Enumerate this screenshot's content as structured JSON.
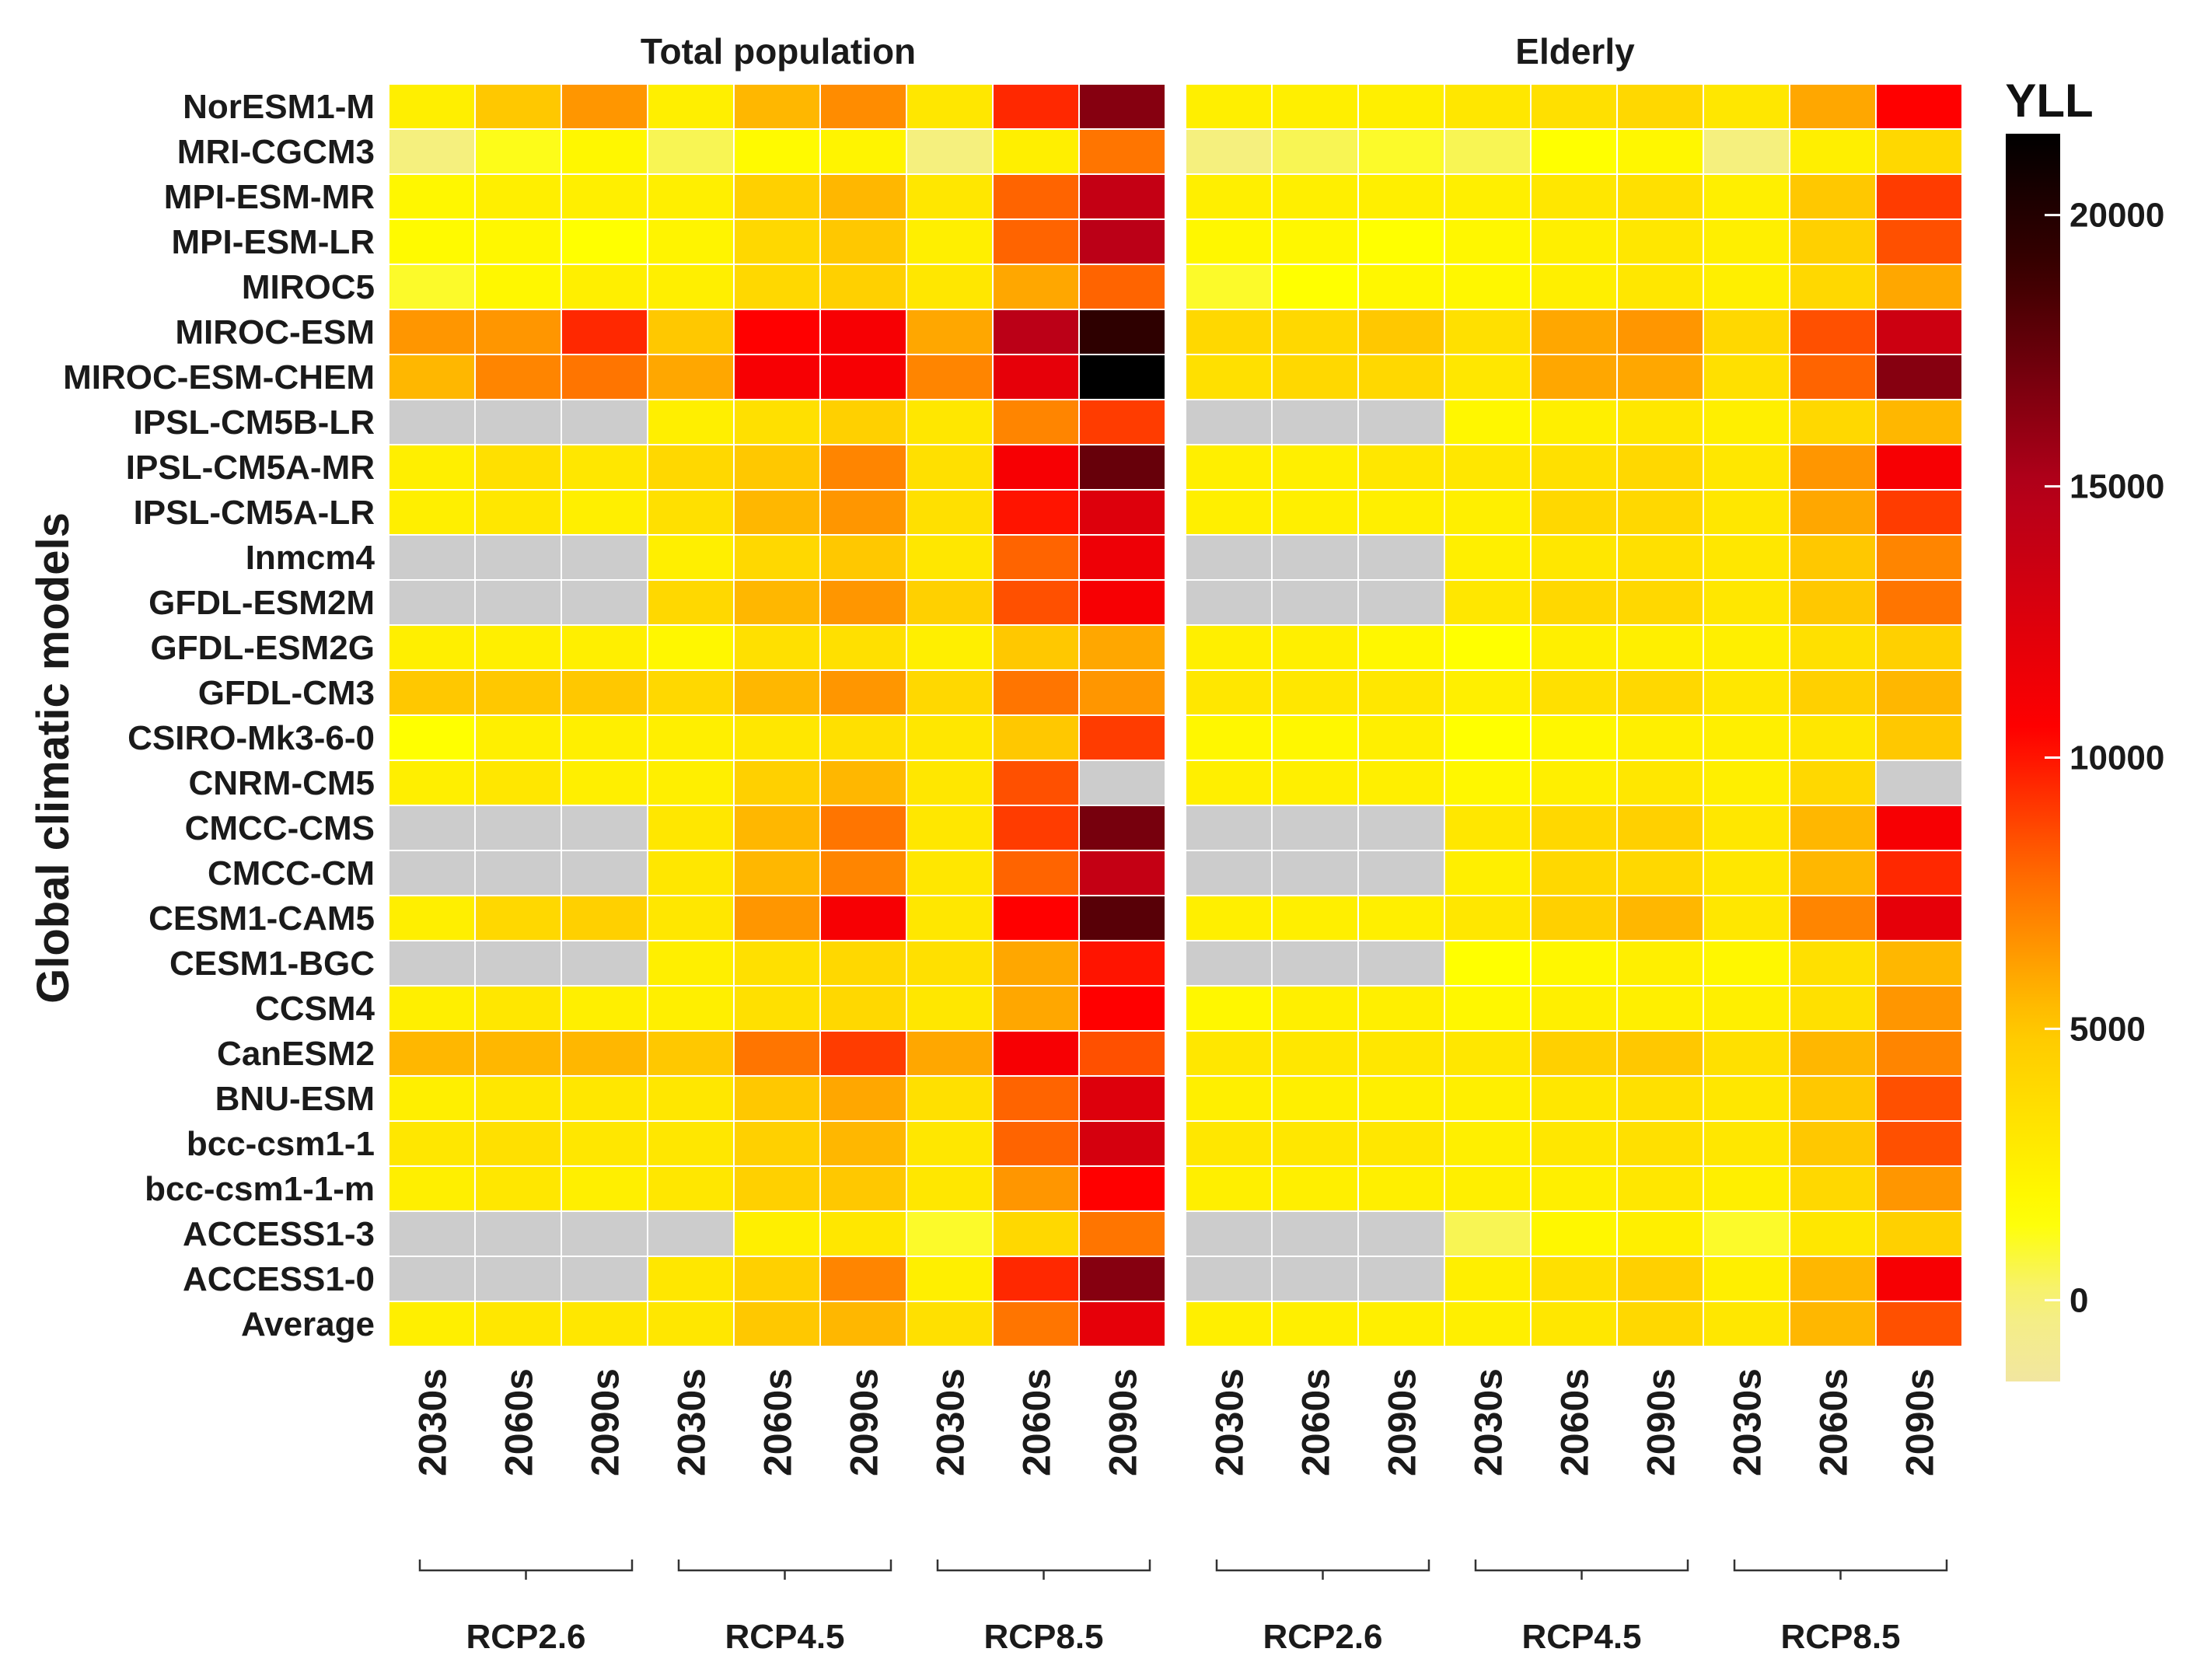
{
  "chart_data": {
    "type": "heatmap",
    "ylabel": "Global climatic models",
    "legend": {
      "title": "YLL",
      "ticks": [
        0,
        5000,
        10000,
        15000,
        20000
      ],
      "range": [
        -1500,
        21500
      ],
      "placement": "right"
    },
    "colorscale": {
      "stops": [
        {
          "value": -1500,
          "color": "#f2e6a0"
        },
        {
          "value": 0,
          "color": "#f5f07e"
        },
        {
          "value": 1500,
          "color": "#ffff00"
        },
        {
          "value": 5000,
          "color": "#ffc800"
        },
        {
          "value": 8000,
          "color": "#ff6400"
        },
        {
          "value": 10500,
          "color": "#ff0000"
        },
        {
          "value": 15000,
          "color": "#b3001a"
        },
        {
          "value": 19000,
          "color": "#3a0000"
        },
        {
          "value": 21500,
          "color": "#000000"
        }
      ],
      "na_color": "#cccccc"
    },
    "rows": [
      "NorESM1-M",
      "MRI-CGCM3",
      "MPI-ESM-MR",
      "MPI-ESM-LR",
      "MIROC5",
      "MIROC-ESM",
      "MIROC-ESM-CHEM",
      "IPSL-CM5B-LR",
      "IPSL-CM5A-MR",
      "IPSL-CM5A-LR",
      "Inmcm4",
      "GFDL-ESM2M",
      "GFDL-ESM2G",
      "GFDL-CM3",
      "CSIRO-Mk3-6-0",
      "CNRM-CM5",
      "CMCC-CMS",
      "CMCC-CM",
      "CESM1-CAM5",
      "CESM1-BGC",
      "CCSM4",
      "CanESM2",
      "BNU-ESM",
      "bcc-csm1-1",
      "bcc-csm1-1-m",
      "ACCESS1-3",
      "ACCESS1-0",
      "Average"
    ],
    "columns": [
      "2030s",
      "2060s",
      "2090s",
      "2030s",
      "2060s",
      "2090s",
      "2030s",
      "2060s",
      "2090s"
    ],
    "scenarios": [
      "RCP2.6",
      "RCP4.5",
      "RCP8.5"
    ],
    "panels": [
      {
        "title": "Total population",
        "values": [
          [
            2500,
            5000,
            6500,
            2500,
            5500,
            6800,
            3000,
            9500,
            16500
          ],
          [
            0,
            1200,
            2000,
            500,
            1800,
            2200,
            0,
            2500,
            7500
          ],
          [
            2000,
            2500,
            2500,
            2500,
            4500,
            5500,
            3000,
            8000,
            14000
          ],
          [
            1800,
            2000,
            1500,
            2200,
            4000,
            5000,
            2500,
            8000,
            14500
          ],
          [
            1000,
            2000,
            2500,
            2500,
            4000,
            4500,
            3000,
            6000,
            8000
          ],
          [
            6500,
            6500,
            9500,
            5000,
            10500,
            11000,
            6000,
            14500,
            19500
          ],
          [
            5500,
            7000,
            7500,
            6000,
            11000,
            11000,
            7000,
            12000,
            21500
          ],
          [
            null,
            null,
            null,
            2500,
            3500,
            4500,
            3000,
            7000,
            9000
          ],
          [
            2500,
            3500,
            3000,
            4000,
            5000,
            7000,
            3500,
            11000,
            17500
          ],
          [
            2500,
            3000,
            2500,
            3500,
            5500,
            6500,
            3500,
            10000,
            12500
          ],
          [
            null,
            null,
            null,
            2500,
            4000,
            5000,
            3000,
            8000,
            11500
          ],
          [
            null,
            null,
            null,
            4000,
            5500,
            6500,
            4500,
            8500,
            11000
          ],
          [
            2500,
            2500,
            2500,
            2000,
            3500,
            3500,
            2500,
            5000,
            6000
          ],
          [
            5000,
            5000,
            5000,
            4000,
            5500,
            6500,
            4000,
            7500,
            6500
          ],
          [
            1500,
            2500,
            2500,
            2500,
            3000,
            3500,
            3000,
            5000,
            9000
          ],
          [
            2500,
            3000,
            2500,
            2500,
            4500,
            5500,
            3000,
            8500,
            null
          ],
          [
            null,
            null,
            null,
            3000,
            5500,
            7500,
            3000,
            9000,
            17000
          ],
          [
            null,
            null,
            null,
            3000,
            5500,
            7000,
            3000,
            8000,
            14000
          ],
          [
            2500,
            4000,
            4500,
            3000,
            6500,
            11000,
            3000,
            10500,
            18000
          ],
          [
            null,
            null,
            null,
            2500,
            3500,
            4000,
            3500,
            6000,
            10000
          ],
          [
            2500,
            3000,
            2500,
            2500,
            3500,
            4000,
            3000,
            6000,
            10500
          ],
          [
            5500,
            5500,
            5500,
            5000,
            7500,
            9000,
            6000,
            11000,
            8500
          ],
          [
            2500,
            3000,
            3000,
            3000,
            5000,
            6000,
            3500,
            8000,
            12500
          ],
          [
            3000,
            3500,
            3000,
            3000,
            4500,
            5500,
            3000,
            8000,
            13000
          ],
          [
            2500,
            3000,
            2500,
            3000,
            4500,
            5000,
            3000,
            6500,
            10500
          ],
          [
            null,
            null,
            null,
            null,
            2500,
            3000,
            1000,
            4000,
            7500
          ],
          [
            null,
            null,
            null,
            3000,
            4500,
            7000,
            2500,
            9500,
            16500
          ],
          [
            2500,
            3000,
            3000,
            3000,
            5000,
            5500,
            3500,
            7500,
            12000
          ]
        ]
      },
      {
        "title": "Elderly",
        "values": [
          [
            2500,
            2500,
            2500,
            3000,
            3500,
            4000,
            3000,
            6000,
            10500
          ],
          [
            0,
            500,
            1000,
            500,
            1500,
            2000,
            0,
            2500,
            4000
          ],
          [
            2500,
            2500,
            2500,
            2500,
            3000,
            3500,
            2500,
            5000,
            9000
          ],
          [
            2000,
            2000,
            1500,
            2000,
            2500,
            3000,
            2500,
            4500,
            8500
          ],
          [
            1000,
            1500,
            2000,
            2000,
            2500,
            3000,
            2500,
            4000,
            6000
          ],
          [
            4000,
            4000,
            5000,
            3500,
            6000,
            6500,
            4000,
            8500,
            13500
          ],
          [
            3500,
            4000,
            4000,
            3000,
            6000,
            6000,
            3500,
            8000,
            16500
          ],
          [
            null,
            null,
            null,
            2000,
            2500,
            3000,
            2500,
            4000,
            5500
          ],
          [
            2500,
            2500,
            3000,
            3000,
            3500,
            4000,
            3000,
            6500,
            11000
          ],
          [
            2500,
            2500,
            2500,
            2500,
            4000,
            4000,
            3000,
            6000,
            9000
          ],
          [
            null,
            null,
            null,
            2500,
            3000,
            3500,
            3000,
            5000,
            7000
          ],
          [
            null,
            null,
            null,
            3000,
            4000,
            4000,
            3000,
            5000,
            7500
          ],
          [
            2500,
            2500,
            2000,
            1500,
            2500,
            2500,
            2500,
            3500,
            4500
          ],
          [
            3000,
            3000,
            3000,
            2500,
            3500,
            4000,
            3000,
            4500,
            5500
          ],
          [
            2000,
            2000,
            2500,
            1500,
            2000,
            2500,
            2500,
            3000,
            5000
          ],
          [
            2500,
            2500,
            2500,
            2000,
            2500,
            3000,
            2500,
            4000,
            null
          ],
          [
            null,
            null,
            null,
            3000,
            4000,
            4500,
            3000,
            5500,
            11000
          ],
          [
            null,
            null,
            null,
            2500,
            4000,
            4000,
            3000,
            5500,
            9500
          ],
          [
            2500,
            2500,
            2500,
            3000,
            4500,
            5500,
            3000,
            7000,
            12000
          ],
          [
            null,
            null,
            null,
            1500,
            2000,
            2500,
            2000,
            3500,
            5500
          ],
          [
            2000,
            2500,
            2500,
            2000,
            2500,
            2500,
            2500,
            3500,
            6500
          ],
          [
            3000,
            3000,
            3000,
            3000,
            4500,
            5000,
            3500,
            5500,
            7000
          ],
          [
            2500,
            2500,
            2500,
            2500,
            3000,
            3500,
            3000,
            5000,
            8500
          ],
          [
            3000,
            3000,
            3000,
            2500,
            3000,
            3500,
            3000,
            5000,
            8500
          ],
          [
            2500,
            2500,
            2500,
            2500,
            2500,
            3000,
            2500,
            4000,
            6500
          ],
          [
            null,
            null,
            null,
            500,
            2000,
            2500,
            1000,
            3000,
            4500
          ],
          [
            null,
            null,
            null,
            2500,
            3500,
            4500,
            2500,
            5500,
            11000
          ],
          [
            2500,
            2500,
            2500,
            2500,
            3000,
            4000,
            3000,
            5500,
            8500
          ]
        ]
      }
    ]
  }
}
